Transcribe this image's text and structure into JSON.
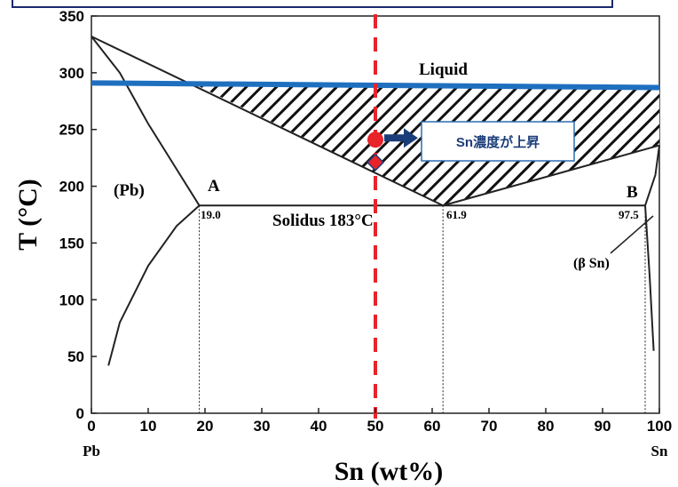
{
  "chart_data": {
    "type": "line",
    "xlabel": "Sn (wt%)",
    "ylabel": "T (°C)",
    "xlim": [
      0,
      100
    ],
    "ylim": [
      0,
      350
    ],
    "x_ticks": [
      0,
      10,
      20,
      30,
      40,
      50,
      60,
      70,
      80,
      90,
      100
    ],
    "y_ticks": [
      0,
      50,
      100,
      150,
      200,
      250,
      300,
      350
    ],
    "x_end_labels": {
      "left": "Pb",
      "right": "Sn"
    },
    "grid": false,
    "curves": {
      "liquidus_left": [
        [
          0,
          332
        ],
        [
          61.9,
          183
        ]
      ],
      "liquidus_right": [
        [
          61.9,
          183
        ],
        [
          100,
          236
        ]
      ],
      "solidus_pb": [
        [
          0,
          332
        ],
        [
          5,
          300
        ],
        [
          10,
          255
        ],
        [
          15,
          215
        ],
        [
          19,
          183
        ]
      ],
      "solvus_pb": [
        [
          19,
          183
        ],
        [
          15,
          165
        ],
        [
          10,
          130
        ],
        [
          5,
          80
        ],
        [
          3,
          42
        ]
      ],
      "solidus_sn": [
        [
          100,
          236
        ],
        [
          99.3,
          210
        ],
        [
          97.5,
          183
        ]
      ],
      "solvus_sn": [
        [
          97.5,
          183
        ],
        [
          98.3,
          120
        ],
        [
          99,
          55
        ]
      ],
      "eutectic_line": [
        [
          19,
          183
        ],
        [
          97.5,
          183
        ]
      ],
      "guide_19": [
        [
          19,
          183
        ],
        [
          19,
          0
        ]
      ],
      "guide_61_9": [
        [
          61.9,
          183
        ],
        [
          61.9,
          0
        ]
      ],
      "guide_97_5": [
        [
          97.5,
          183
        ],
        [
          97.5,
          0
        ]
      ],
      "liquid_region_top_line": [
        [
          0,
          291
        ],
        [
          100,
          287
        ]
      ],
      "vertical_dashed_line": [
        [
          50,
          350
        ],
        [
          50,
          0
        ]
      ]
    },
    "hatched_region": [
      [
        18.5,
        289
      ],
      [
        100,
        287
      ],
      [
        100,
        236
      ],
      [
        61.9,
        183
      ]
    ],
    "markers": [
      {
        "shape": "circle",
        "x": 50,
        "y": 241,
        "color": "#e8232a"
      },
      {
        "shape": "diamond",
        "x": 50,
        "y": 221,
        "color": "#e8232a"
      }
    ],
    "annotations": {
      "liquid": "Liquid",
      "pb_phase": "(Pb)",
      "point_a": "A",
      "point_b": "B",
      "solidus": "Solidus 183°C",
      "comp_19": "19.0",
      "comp_61": "61.9",
      "comp_97": "97.5",
      "beta_sn": "(β Sn)"
    },
    "callout": {
      "text": "Sn濃度が上昇"
    },
    "colors": {
      "curves": "#222222",
      "blue_line": "#1f6fbf",
      "red_dashed": "#e8232a",
      "marker": "#e8232a",
      "arrow": "#1a3d7a",
      "callout_border": "#2c6db3"
    }
  }
}
